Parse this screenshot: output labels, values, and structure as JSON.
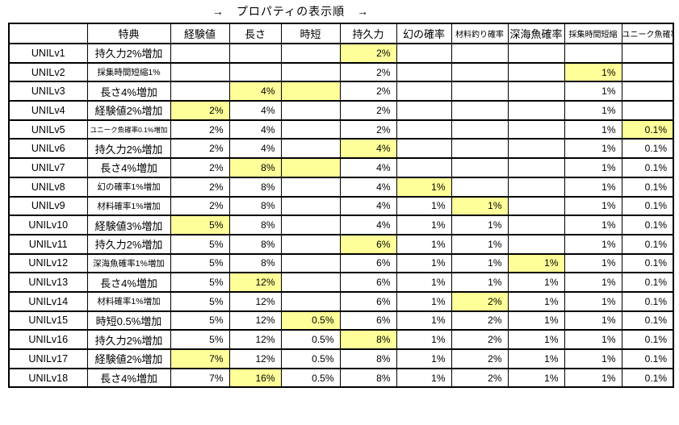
{
  "colors": {
    "highlight": "#ffff99",
    "border": "#000000",
    "background": "#ffffff"
  },
  "chart_data": {
    "type": "table",
    "title": "→　プロパティの表示順　→",
    "columns": [
      "",
      "特典",
      "経験値",
      "長さ",
      "時短",
      "持久力",
      "幻の確率",
      "材料釣り確率",
      "深海魚確率",
      "採集時間短縮",
      "ユニーク魚確率"
    ],
    "value_columns": [
      "経験値",
      "長さ",
      "時短",
      "持久力",
      "幻の確率",
      "材料釣り確率",
      "深海魚確率",
      "採集時間短縮",
      "ユニーク魚確率"
    ],
    "rows": [
      {
        "level": "UNILv1",
        "perk": "持久力2%増加",
        "values": [
          "",
          "",
          "",
          "2%",
          "",
          "",
          "",
          "",
          ""
        ],
        "highlight": [
          3
        ]
      },
      {
        "level": "UNILv2",
        "perk": "採集時間短縮1%",
        "values": [
          "",
          "",
          "",
          "2%",
          "",
          "",
          "",
          "1%",
          ""
        ],
        "highlight": [
          7
        ]
      },
      {
        "level": "UNILv3",
        "perk": "長さ4%増加",
        "values": [
          "",
          "4%",
          "",
          "2%",
          "",
          "",
          "",
          "1%",
          ""
        ],
        "highlight": [
          1,
          2
        ]
      },
      {
        "level": "UNILv4",
        "perk": "経験値2%増加",
        "values": [
          "2%",
          "4%",
          "",
          "2%",
          "",
          "",
          "",
          "1%",
          ""
        ],
        "highlight": [
          0
        ]
      },
      {
        "level": "UNILv5",
        "perk": "ユニーク魚確率0.1%増加",
        "values": [
          "2%",
          "4%",
          "",
          "2%",
          "",
          "",
          "",
          "1%",
          "0.1%"
        ],
        "highlight": [
          8
        ]
      },
      {
        "level": "UNILv6",
        "perk": "持久力2%増加",
        "values": [
          "2%",
          "4%",
          "",
          "4%",
          "",
          "",
          "",
          "1%",
          "0.1%"
        ],
        "highlight": [
          3
        ]
      },
      {
        "level": "UNILv7",
        "perk": "長さ4%増加",
        "values": [
          "2%",
          "8%",
          "",
          "4%",
          "",
          "",
          "",
          "1%",
          "0.1%"
        ],
        "highlight": [
          1,
          2
        ]
      },
      {
        "level": "UNILv8",
        "perk": "幻の確率1%増加",
        "values": [
          "2%",
          "8%",
          "",
          "4%",
          "1%",
          "",
          "",
          "1%",
          "0.1%"
        ],
        "highlight": [
          4
        ]
      },
      {
        "level": "UNILv9",
        "perk": "材料確率1%増加",
        "values": [
          "2%",
          "8%",
          "",
          "4%",
          "1%",
          "1%",
          "",
          "1%",
          "0.1%"
        ],
        "highlight": [
          5
        ]
      },
      {
        "level": "UNILv10",
        "perk": "経験値3%増加",
        "values": [
          "5%",
          "8%",
          "",
          "4%",
          "1%",
          "1%",
          "",
          "1%",
          "0.1%"
        ],
        "highlight": [
          0
        ]
      },
      {
        "level": "UNILv11",
        "perk": "持久力2%増加",
        "values": [
          "5%",
          "8%",
          "",
          "6%",
          "1%",
          "1%",
          "",
          "1%",
          "0.1%"
        ],
        "highlight": [
          3
        ]
      },
      {
        "level": "UNILv12",
        "perk": "深海魚確率1%増加",
        "values": [
          "5%",
          "8%",
          "",
          "6%",
          "1%",
          "1%",
          "1%",
          "1%",
          "0.1%"
        ],
        "highlight": [
          6
        ]
      },
      {
        "level": "UNILv13",
        "perk": "長さ4%増加",
        "values": [
          "5%",
          "12%",
          "",
          "6%",
          "1%",
          "1%",
          "1%",
          "1%",
          "0.1%"
        ],
        "highlight": [
          1
        ]
      },
      {
        "level": "UNILv14",
        "perk": "材料確率1%増加",
        "values": [
          "5%",
          "12%",
          "",
          "6%",
          "1%",
          "2%",
          "1%",
          "1%",
          "0.1%"
        ],
        "highlight": [
          5
        ]
      },
      {
        "level": "UNILv15",
        "perk": "時短0.5%増加",
        "values": [
          "5%",
          "12%",
          "0.5%",
          "6%",
          "1%",
          "2%",
          "1%",
          "1%",
          "0.1%"
        ],
        "highlight": [
          2
        ]
      },
      {
        "level": "UNILv16",
        "perk": "持久力2%増加",
        "values": [
          "5%",
          "12%",
          "0.5%",
          "8%",
          "1%",
          "2%",
          "1%",
          "1%",
          "0.1%"
        ],
        "highlight": [
          3
        ]
      },
      {
        "level": "UNILv17",
        "perk": "経験値2%増加",
        "values": [
          "7%",
          "12%",
          "0.5%",
          "8%",
          "1%",
          "2%",
          "1%",
          "1%",
          "0.1%"
        ],
        "highlight": [
          0
        ]
      },
      {
        "level": "UNILv18",
        "perk": "長さ4%増加",
        "values": [
          "7%",
          "16%",
          "0.5%",
          "8%",
          "1%",
          "2%",
          "1%",
          "1%",
          "0.1%"
        ],
        "highlight": [
          1
        ]
      }
    ]
  }
}
